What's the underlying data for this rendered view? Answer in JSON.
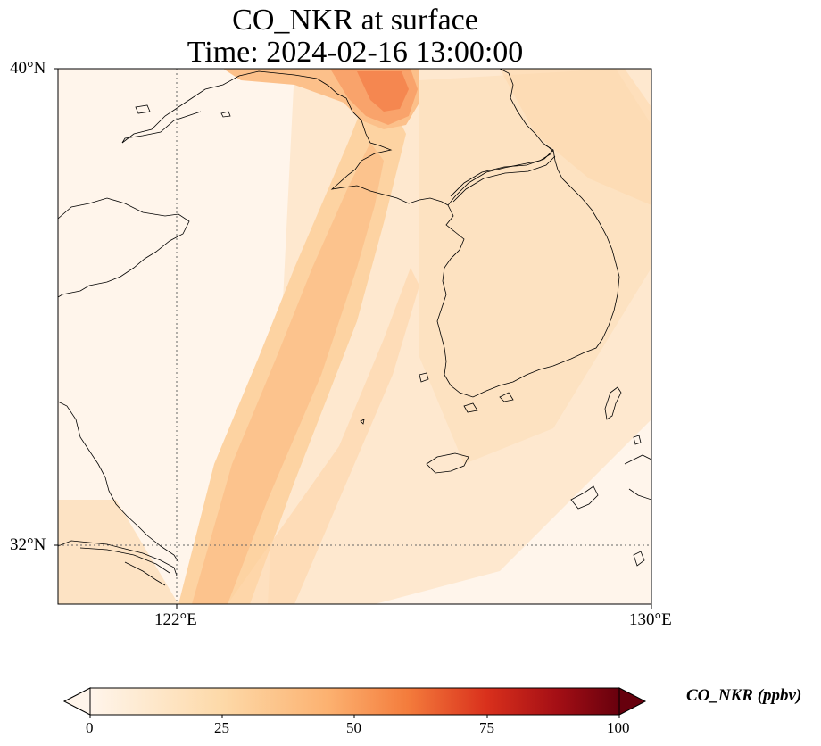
{
  "title": {
    "line1": "CO_NKR at surface",
    "line2": "Time: 2024-02-16 13:00:00"
  },
  "map": {
    "lat_ticks": [
      "40°N",
      "32°N"
    ],
    "lon_ticks": [
      "122°E",
      "130°E"
    ],
    "extent": {
      "lon_min": 120,
      "lon_max": 130,
      "lat_min": 31,
      "lat_max": 40
    },
    "gridlines": "dotted",
    "coastlines": true,
    "background_color": "#fff5eb"
  },
  "colorbar": {
    "label": "CO_NKR (ppbv)",
    "ticks": [
      "0",
      "25",
      "50",
      "75",
      "100"
    ],
    "range": [
      0,
      100
    ],
    "extend": "both",
    "colormap": "Oranges-Reds",
    "colors": [
      "#fff5eb",
      "#fdd9a8",
      "#fcb170",
      "#f47c3c",
      "#d9301c",
      "#a50f15",
      "#67000d"
    ]
  }
}
